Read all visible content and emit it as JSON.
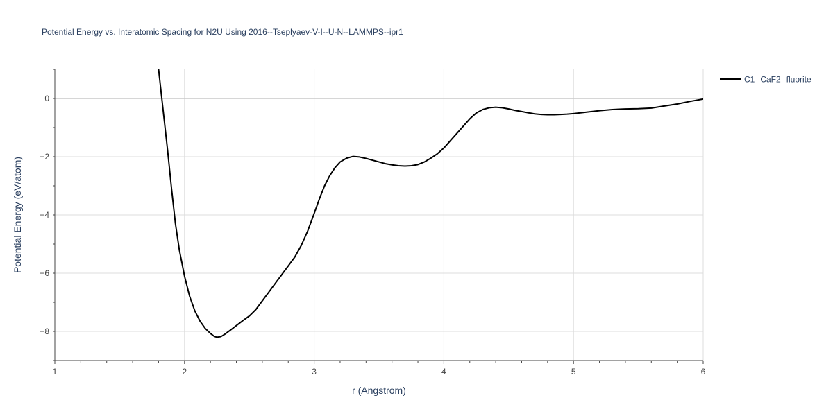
{
  "chart_data": {
    "type": "line",
    "title": "Potential Energy vs. Interatomic Spacing for N2U Using 2016--Tseplyaev-V-I--U-N--LAMMPS--ipr1",
    "xlabel": "r (Angstrom)",
    "ylabel": "Potential Energy (eV/atom)",
    "xlim": [
      1,
      6
    ],
    "ylim": [
      -9,
      1
    ],
    "x_ticks": [
      1,
      2,
      3,
      4,
      5,
      6
    ],
    "x_tick_labels": [
      "1",
      "2",
      "3",
      "4",
      "5",
      "6"
    ],
    "y_ticks": [
      -8,
      -6,
      -4,
      -2,
      0
    ],
    "y_tick_labels": [
      "−8",
      "−6",
      "−4",
      "−2",
      "0"
    ],
    "grid": true,
    "legend": "top-right, outside plot",
    "series": [
      {
        "name": "C1--CaF2--fluorite",
        "color": "#000000",
        "x": [
          1.8,
          1.84,
          1.87,
          1.9,
          1.93,
          1.96,
          2.0,
          2.04,
          2.08,
          2.12,
          2.16,
          2.2,
          2.23,
          2.25,
          2.28,
          2.31,
          2.35,
          2.4,
          2.45,
          2.5,
          2.55,
          2.6,
          2.65,
          2.7,
          2.75,
          2.8,
          2.85,
          2.9,
          2.95,
          3.0,
          3.04,
          3.08,
          3.12,
          3.16,
          3.2,
          3.25,
          3.3,
          3.35,
          3.4,
          3.45,
          3.5,
          3.55,
          3.6,
          3.65,
          3.7,
          3.75,
          3.8,
          3.85,
          3.9,
          3.95,
          4.0,
          4.05,
          4.1,
          4.15,
          4.2,
          4.25,
          4.3,
          4.35,
          4.4,
          4.45,
          4.5,
          4.55,
          4.6,
          4.65,
          4.7,
          4.75,
          4.8,
          4.85,
          4.9,
          4.95,
          5.0,
          5.1,
          5.2,
          5.3,
          5.4,
          5.5,
          5.6,
          5.7,
          5.8,
          5.9,
          6.0
        ],
        "y": [
          1.0,
          -0.6,
          -1.8,
          -3.1,
          -4.3,
          -5.2,
          -6.1,
          -6.8,
          -7.3,
          -7.65,
          -7.9,
          -8.07,
          -8.17,
          -8.2,
          -8.18,
          -8.1,
          -7.97,
          -7.8,
          -7.63,
          -7.47,
          -7.25,
          -6.95,
          -6.65,
          -6.35,
          -6.05,
          -5.75,
          -5.45,
          -5.05,
          -4.55,
          -3.95,
          -3.45,
          -3.0,
          -2.65,
          -2.38,
          -2.18,
          -2.05,
          -1.99,
          -2.01,
          -2.06,
          -2.12,
          -2.18,
          -2.24,
          -2.28,
          -2.31,
          -2.32,
          -2.31,
          -2.27,
          -2.18,
          -2.05,
          -1.9,
          -1.7,
          -1.45,
          -1.2,
          -0.95,
          -0.7,
          -0.5,
          -0.38,
          -0.32,
          -0.3,
          -0.32,
          -0.36,
          -0.41,
          -0.45,
          -0.49,
          -0.53,
          -0.55,
          -0.56,
          -0.56,
          -0.55,
          -0.54,
          -0.52,
          -0.47,
          -0.42,
          -0.38,
          -0.36,
          -0.35,
          -0.33,
          -0.26,
          -0.19,
          -0.1,
          -0.02
        ]
      }
    ]
  }
}
